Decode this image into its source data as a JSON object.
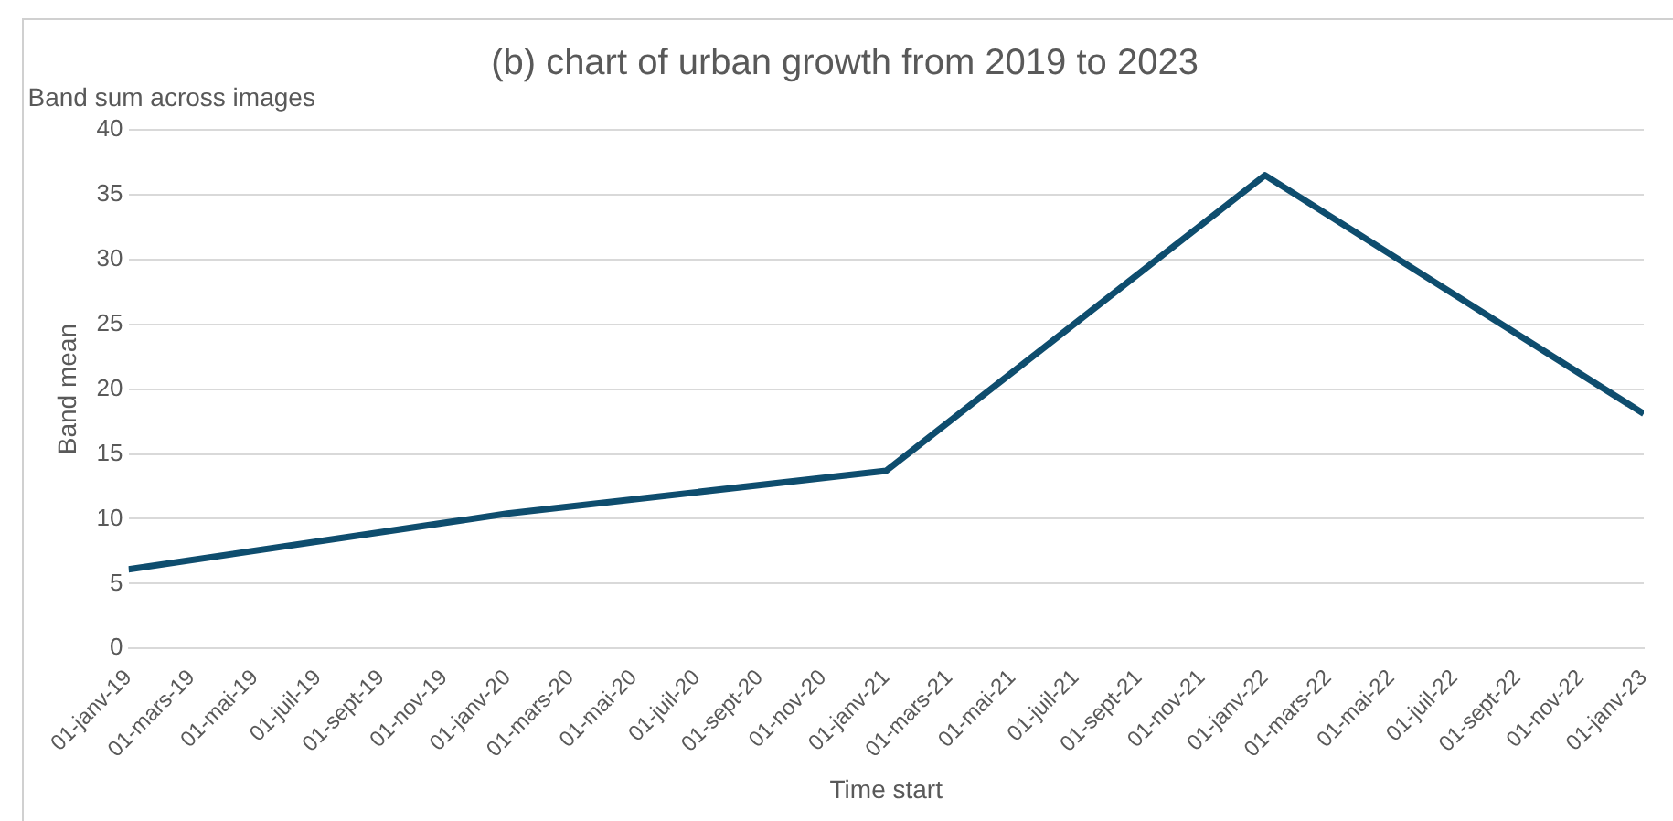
{
  "chart_data": {
    "type": "line",
    "title": "(b) chart of urban growth from 2019 to 2023",
    "subtitle": "Band sum across images",
    "xlabel": "Time start",
    "ylabel": "Band mean",
    "x": [
      "2019-01-01",
      "2020-01-01",
      "2021-01-01",
      "2022-01-01",
      "2023-01-01"
    ],
    "series": [
      {
        "color": "#0e4d6e",
        "values": [
          6.1,
          10.4,
          13.7,
          36.5,
          18.1
        ]
      }
    ],
    "xlim": [
      "2019-01-01",
      "2023-01-01"
    ],
    "xticks": [
      {
        "value": "2019-01-01",
        "label": "01-janv-19"
      },
      {
        "value": "2019-03-01",
        "label": "01-mars-19"
      },
      {
        "value": "2019-05-01",
        "label": "01-mai-19"
      },
      {
        "value": "2019-07-01",
        "label": "01-juil-19"
      },
      {
        "value": "2019-09-01",
        "label": "01-sept-19"
      },
      {
        "value": "2019-11-01",
        "label": "01-nov-19"
      },
      {
        "value": "2020-01-01",
        "label": "01-janv-20"
      },
      {
        "value": "2020-03-01",
        "label": "01-mars-20"
      },
      {
        "value": "2020-05-01",
        "label": "01-mai-20"
      },
      {
        "value": "2020-07-01",
        "label": "01-juil-20"
      },
      {
        "value": "2020-09-01",
        "label": "01-sept-20"
      },
      {
        "value": "2020-11-01",
        "label": "01-nov-20"
      },
      {
        "value": "2021-01-01",
        "label": "01-janv-21"
      },
      {
        "value": "2021-03-01",
        "label": "01-mars-21"
      },
      {
        "value": "2021-05-01",
        "label": "01-mai-21"
      },
      {
        "value": "2021-07-01",
        "label": "01-juil-21"
      },
      {
        "value": "2021-09-01",
        "label": "01-sept-21"
      },
      {
        "value": "2021-11-01",
        "label": "01-nov-21"
      },
      {
        "value": "2022-01-01",
        "label": "01-janv-22"
      },
      {
        "value": "2022-03-01",
        "label": "01-mars-22"
      },
      {
        "value": "2022-05-01",
        "label": "01-mai-22"
      },
      {
        "value": "2022-07-01",
        "label": "01-juil-22"
      },
      {
        "value": "2022-09-01",
        "label": "01-sept-22"
      },
      {
        "value": "2022-11-01",
        "label": "01-nov-22"
      },
      {
        "value": "2023-01-01",
        "label": "01-janv-23"
      }
    ],
    "ylim": [
      0,
      40
    ],
    "yticks": [
      0,
      5,
      10,
      15,
      20,
      25,
      30,
      35,
      40
    ],
    "grid": "y",
    "legend": false,
    "marker": "none",
    "line_style": "solid"
  }
}
